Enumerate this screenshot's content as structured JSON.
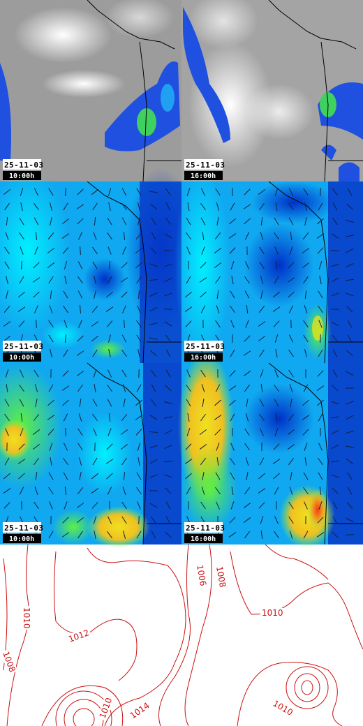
{
  "panels": [
    {
      "date": "25-11-03",
      "time": "10:00h"
    },
    {
      "date": "25-11-03",
      "time": "16:00h"
    },
    {
      "date": "25-11-03",
      "time": "10:00h"
    },
    {
      "date": "25-11-03",
      "time": "16:00h"
    },
    {
      "date": "25-11-03",
      "time": "10:00h"
    },
    {
      "date": "25-11-03",
      "time": "16:00h"
    }
  ],
  "pressure_map": {
    "contour_labels": [
      "1010",
      "1008",
      "1012",
      "1010",
      "1014",
      "1006",
      "1008",
      "1010",
      "1010"
    ]
  }
}
